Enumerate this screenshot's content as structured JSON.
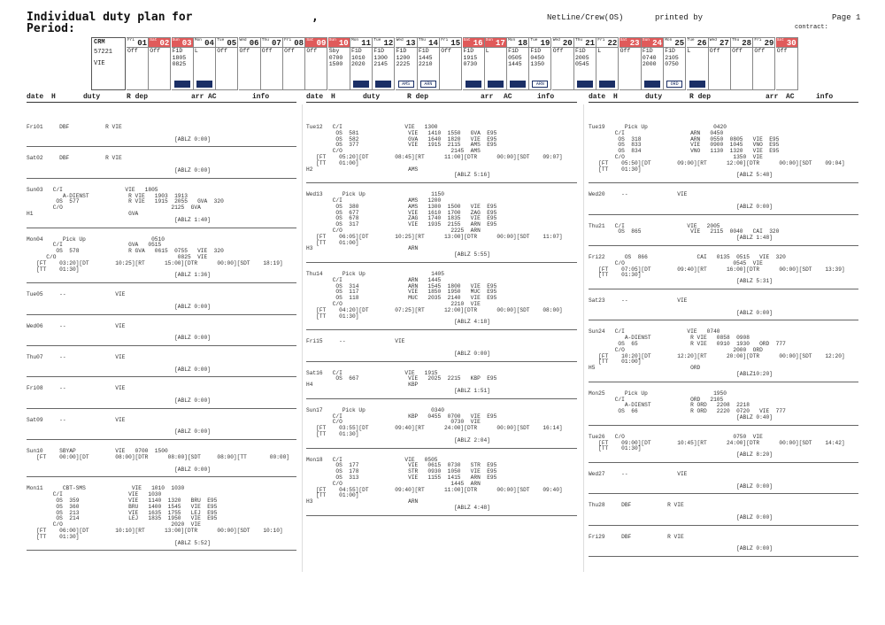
{
  "header": {
    "title": "Individual duty plan",
    "for_label": "for",
    "comma": ",",
    "period_label": "Period:",
    "system": "NetLine/Crew(OS)",
    "printed_by": "printed by",
    "page": "Page 1",
    "contract": "contract:"
  },
  "calendar": {
    "crm_label": "CRM",
    "crm_id": "57221",
    "crm_base": "VIE",
    "days": [
      {
        "wd": "Fri",
        "num": "01",
        "red": false,
        "lines": [
          "Off"
        ],
        "mark": ""
      },
      {
        "wd": "Sat",
        "num": "02",
        "red": true,
        "lines": [
          "Off"
        ],
        "mark": ""
      },
      {
        "wd": "Sun",
        "num": "03",
        "red": true,
        "lines": [
          "F1D",
          "1805",
          "0825"
        ],
        "mark": "solid"
      },
      {
        "wd": "Mon",
        "num": "04",
        "red": false,
        "lines": [
          "L"
        ],
        "mark": "solid"
      },
      {
        "wd": "Tue",
        "num": "05",
        "red": false,
        "lines": [
          "Off"
        ],
        "mark": ""
      },
      {
        "wd": "Wed",
        "num": "06",
        "red": false,
        "lines": [
          "Off"
        ],
        "mark": ""
      },
      {
        "wd": "Thu",
        "num": "07",
        "red": false,
        "lines": [
          "Off"
        ],
        "mark": ""
      },
      {
        "wd": "Fri",
        "num": "08",
        "red": false,
        "lines": [
          "Off"
        ],
        "mark": ""
      },
      {
        "wd": "Sat",
        "num": "09",
        "red": true,
        "lines": [
          "Off"
        ],
        "mark": ""
      },
      {
        "wd": "Sun",
        "num": "10",
        "red": true,
        "lines": [
          "Sby",
          "0700",
          "1500"
        ],
        "mark": ""
      },
      {
        "wd": "Mon",
        "num": "11",
        "red": false,
        "lines": [
          "F1D",
          "1010",
          "2020"
        ],
        "mark": "solid"
      },
      {
        "wd": "Tue",
        "num": "12",
        "red": false,
        "lines": [
          "F1D",
          "1300",
          "2145"
        ],
        "mark": "solid"
      },
      {
        "wd": "Wed",
        "num": "13",
        "red": false,
        "lines": [
          "F1D",
          "1200",
          "2225"
        ],
        "mark": "AMS"
      },
      {
        "wd": "Thu",
        "num": "14",
        "red": false,
        "lines": [
          "F1D",
          "1445",
          "2210"
        ],
        "mark": "ARN"
      },
      {
        "wd": "Fri",
        "num": "15",
        "red": false,
        "lines": [
          "Off"
        ],
        "mark": ""
      },
      {
        "wd": "Sat",
        "num": "16",
        "red": true,
        "lines": [
          "F1D",
          "1915",
          "0730"
        ],
        "mark": "solid"
      },
      {
        "wd": "Sun",
        "num": "17",
        "red": true,
        "lines": [
          "L"
        ],
        "mark": "solid"
      },
      {
        "wd": "Mon",
        "num": "18",
        "red": false,
        "lines": [
          "F1D",
          "0505",
          "1445"
        ],
        "mark": "solid"
      },
      {
        "wd": "Tue",
        "num": "19",
        "red": false,
        "lines": [
          "F1D",
          "0450",
          "1350"
        ],
        "mark": "ARN"
      },
      {
        "wd": "Wed",
        "num": "20",
        "red": false,
        "lines": [
          "Off"
        ],
        "mark": ""
      },
      {
        "wd": "Thu",
        "num": "21",
        "red": false,
        "lines": [
          "F1D",
          "2005",
          "0545"
        ],
        "mark": "solid"
      },
      {
        "wd": "Fri",
        "num": "22",
        "red": false,
        "lines": [
          "L"
        ],
        "mark": "solid"
      },
      {
        "wd": "Sat",
        "num": "23",
        "red": true,
        "lines": [
          "Off"
        ],
        "mark": ""
      },
      {
        "wd": "Sun",
        "num": "24",
        "red": true,
        "lines": [
          "F1D",
          "0740",
          "2000"
        ],
        "mark": "solid"
      },
      {
        "wd": "Mon",
        "num": "25",
        "red": false,
        "lines": [
          "F1D",
          "2105",
          "0750"
        ],
        "mark": "ORD"
      },
      {
        "wd": "Tue",
        "num": "26",
        "red": false,
        "lines": [
          "L"
        ],
        "mark": "solid"
      },
      {
        "wd": "Wed",
        "num": "27",
        "red": false,
        "lines": [
          "Off"
        ],
        "mark": ""
      },
      {
        "wd": "Thu",
        "num": "28",
        "red": false,
        "lines": [
          "Off"
        ],
        "mark": ""
      },
      {
        "wd": "Fri",
        "num": "29",
        "red": false,
        "lines": [
          "Off"
        ],
        "mark": ""
      },
      {
        "wd": "Sat",
        "num": "30",
        "red": true,
        "lines": [
          "Off"
        ],
        "mark": ""
      }
    ]
  },
  "column_header": {
    "date": "date",
    "h": "H",
    "duty": "duty",
    "rdep": "R dep",
    "arr": "arr",
    "ac": "AC",
    "info": "info"
  },
  "columns": [
    {
      "entries": [
        {
          "lines": [
            "Fri01     DBF           R VIE",
            "",
            "                                             [ABLZ 0:00]"
          ]
        },
        {
          "lines": [
            "Sat02     DBF           R VIE",
            "",
            "                                             [ABLZ 0:00]"
          ]
        },
        {
          "lines": [
            "Sun03   C/I                   VIE   1805",
            "           A-DIENST            R VIE   1903  1913",
            "         OS  577               R VIE   1915  2055   GVA  320",
            "        C/O                                 2125  GVA",
            "H1                             GVA",
            "                                             [ABLZ 1:40]"
          ]
        },
        {
          "lines": [
            "Mon04      Pick Up                    0510",
            "        C/I                    GVA   0515",
            "         OS  578               R GVA   0615  0755   VIE  320",
            "      C/O                                     0825  VIE",
            "   [FT    03:20][DT        10:25][RT      15:00][DTR      00:00][SDT    18:19]",
            "   [TT    01:30]",
            "                                             [ABLZ 1:36]"
          ]
        },
        {
          "lines": [
            "Tue05     --               VIE",
            "",
            "                                             [ABLZ 0:00]"
          ]
        },
        {
          "lines": [
            "Wed06     --               VIE",
            "",
            "                                             [ABLZ 0:00]"
          ]
        },
        {
          "lines": [
            "Thu07     --               VIE",
            "",
            "                                             [ABLZ 0:00]"
          ]
        },
        {
          "lines": [
            "Fri08     --               VIE",
            "",
            "                                             [ABLZ 0:00]"
          ]
        },
        {
          "lines": [
            "Sat09     --               VIE",
            "",
            "                                             [ABLZ 0:00]"
          ]
        },
        {
          "lines": [
            "Sun10     SBYAP            VIE   0700  1500",
            "   [FT    00:00][DT        08:00][DTR      08:00][SDT     08:00][TT       00:00]",
            "",
            "                                             [ABLZ 0:00]"
          ]
        },
        {
          "lines": [
            "Mon11      CBT-SMS              VIE   1010  1030",
            "        C/I                    VIE   1030",
            "         OS  359               VIE   1140  1320   BRU  E95",
            "         OS  360               BRU   1400  1545   VIE  E95",
            "         OS  213               VIE   1635  1755   LEJ  E95",
            "         OS  214               LEJ   1835  1950   VIE  E95",
            "        C/O                                 2020  VIE",
            "   [FT    06:00][DT        10:10][RT      13:00][DTR      00:00][SDT    10:10]",
            "   [TT    01:30]",
            "                                             [ABLZ 5:52]"
          ]
        }
      ]
    },
    {
      "entries": [
        {
          "lines": [
            "Tue12   C/I                   VIE   1300",
            "         OS  581               VIE   1410  1550   GVA  E95",
            "         OS  582               GVA   1640  1820   VIE  E95",
            "         OS  377               VIE   1915  2115   AMS  E95",
            "        C/O                                 2145  AMS",
            "   [FT    05:20][DT        08:45][RT      11:00][DTR      00:00][SDT    09:07]",
            "   [TT    01:00]",
            "H2                             AMS",
            "                                             [ABLZ 5:16]"
          ]
        },
        {
          "lines": [
            "Wed13      Pick Up                    1150",
            "        C/I                    AMS   1200",
            "         OS  380               AMS   1300  1500   VIE  E95",
            "         OS  677               VIE   1610  1700   ZAG  E95",
            "         OS  678               ZAG   1740  1835   VIE  E95",
            "         OS  317               VIE   1935  2155   ARN  E95",
            "        C/O                                 2225  ARN",
            "   [FT    06:05][DT        10:25][RT      13:00][DTR      00:00][SDT    11:07]",
            "   [TT    01:00]",
            "H3                             ARN",
            "                                             [ABLZ 5:55]"
          ]
        },
        {
          "lines": [
            "Thu14      Pick Up                    1405",
            "        C/I                    ARN   1445",
            "         OS  314               ARN   1545  1800   VIE  E95",
            "         OS  117               VIE   1850  1950   MUC  E95",
            "         OS  118               MUC   2035  2140   VIE  E95",
            "        C/O                                 2210  VIE",
            "   [FT    04:20][DT        07:25][RT      12:00][DTR      00:00][SDT    08:00]",
            "   [TT    01:30]",
            "                                             [ABLZ 4:18]"
          ]
        },
        {
          "lines": [
            "Fri15     --               VIE",
            "",
            "                                             [ABLZ 0:00]"
          ]
        },
        {
          "lines": [
            "Sat16   C/I                   VIE   1915",
            "         OS  667               VIE   2025  2215   KBP  E95",
            "H4                             KBP",
            "                                             [ABLZ 1:51]"
          ]
        },
        {
          "lines": [
            "Sun17      Pick Up                    0340",
            "        C/I                    KBP   0455  0700   VIE  E95",
            "        C/O                                 0730  VIE",
            "   [FT    03:55][DT        09:40][RT      24:00][DTR      00:00][SDT    16:14]",
            "   [TT    01:30]",
            "                                             [ABLZ 2:04]"
          ]
        },
        {
          "lines": [
            "Mon18   C/I                   VIE   0505",
            "         OS  177               VIE   0615  0730   STR  E95",
            "         OS  178               STR   0930  1050   VIE  E95",
            "         OS  313               VIE   1155  1415   ARN  E95",
            "        C/O                                 1445  ARN",
            "   [FT    04:55][DT        09:40][RT      11:00][DTR      00:00][SDT    09:40]",
            "   [TT    01:00]",
            "H3                             ARN",
            "                                             [ABLZ 4:48]"
          ]
        }
      ]
    },
    {
      "entries": [
        {
          "lines": [
            "Tue19      Pick Up                    0420",
            "        C/I                    ARN   0450",
            "         OS  318               ARN   0550  0805   VIE  E95",
            "         OS  833               VIE   0900  1045   VNO  E95",
            "         OS  834               VNO   1130  1320   VIE  E95",
            "        C/O                                 1350  VIE",
            "   [FT    05:50][DT        09:00][RT      12:00][DTR      00:00][SDT    09:04]",
            "   [TT    01:30]",
            "                                             [ABLZ 5:48]"
          ]
        },
        {
          "lines": [
            "Wed20     --               VIE",
            "",
            "                                             [ABLZ 0:00]"
          ]
        },
        {
          "lines": [
            "Thu21   C/I                   VIE   2005",
            "         OS  865               VIE   2115  0040   CAI  320",
            "                                             [ABLZ 1:48]"
          ]
        },
        {
          "lines": [
            "Fri22      OS  866               CAI   0135  0515   VIE  320",
            "        C/O                                 0545  VIE",
            "   [FT    07:05][DT        09:40][RT      16:00][DTR      00:00][SDT    13:39]",
            "   [TT    01:30]",
            "                                             [ABLZ 5:31]"
          ]
        },
        {
          "lines": [
            "Sat23     --               VIE",
            "",
            "                                             [ABLZ 0:00]"
          ]
        },
        {
          "lines": [
            "Sun24   C/I                   VIE   0740",
            "           A-DIENST            R VIE   0858  0908",
            "         OS  65                R VIE   0910  1930   ORD  777",
            "        C/O                                 2000  ORD",
            "   [FT    10:20][DT        12:20][RT      20:00][DTR      00:00][SDT    12:20]",
            "   [TT    01:00]",
            "H5                             ORD",
            "                                             [ABLZ10:20]"
          ]
        },
        {
          "lines": [
            "Mon25      Pick Up                    1950",
            "        C/I                    ORD   2105",
            "           A-DIENST            R ORD   2208  2218",
            "         OS  66                R ORD   2220  0720   VIE  777",
            "                                             [ABLZ 0:40]"
          ]
        },
        {
          "lines": [
            "Tue26   C/O                                 0750  VIE",
            "   [FT    09:00][DT        10:45][RT      24:00][DTR      00:00][SDT    14:42]",
            "   [TT    01:30]",
            "                                             [ABLZ 8:20]"
          ]
        },
        {
          "lines": [
            "Wed27     --               VIE",
            "",
            "                                             [ABLZ 0:00]"
          ]
        },
        {
          "lines": [
            "Thu28     DBF           R VIE",
            "",
            "                                             [ABLZ 0:00]"
          ]
        },
        {
          "lines": [
            "Fri29     DBF           R VIE",
            "",
            "                                             [ABLZ 0:00]"
          ]
        }
      ]
    }
  ]
}
